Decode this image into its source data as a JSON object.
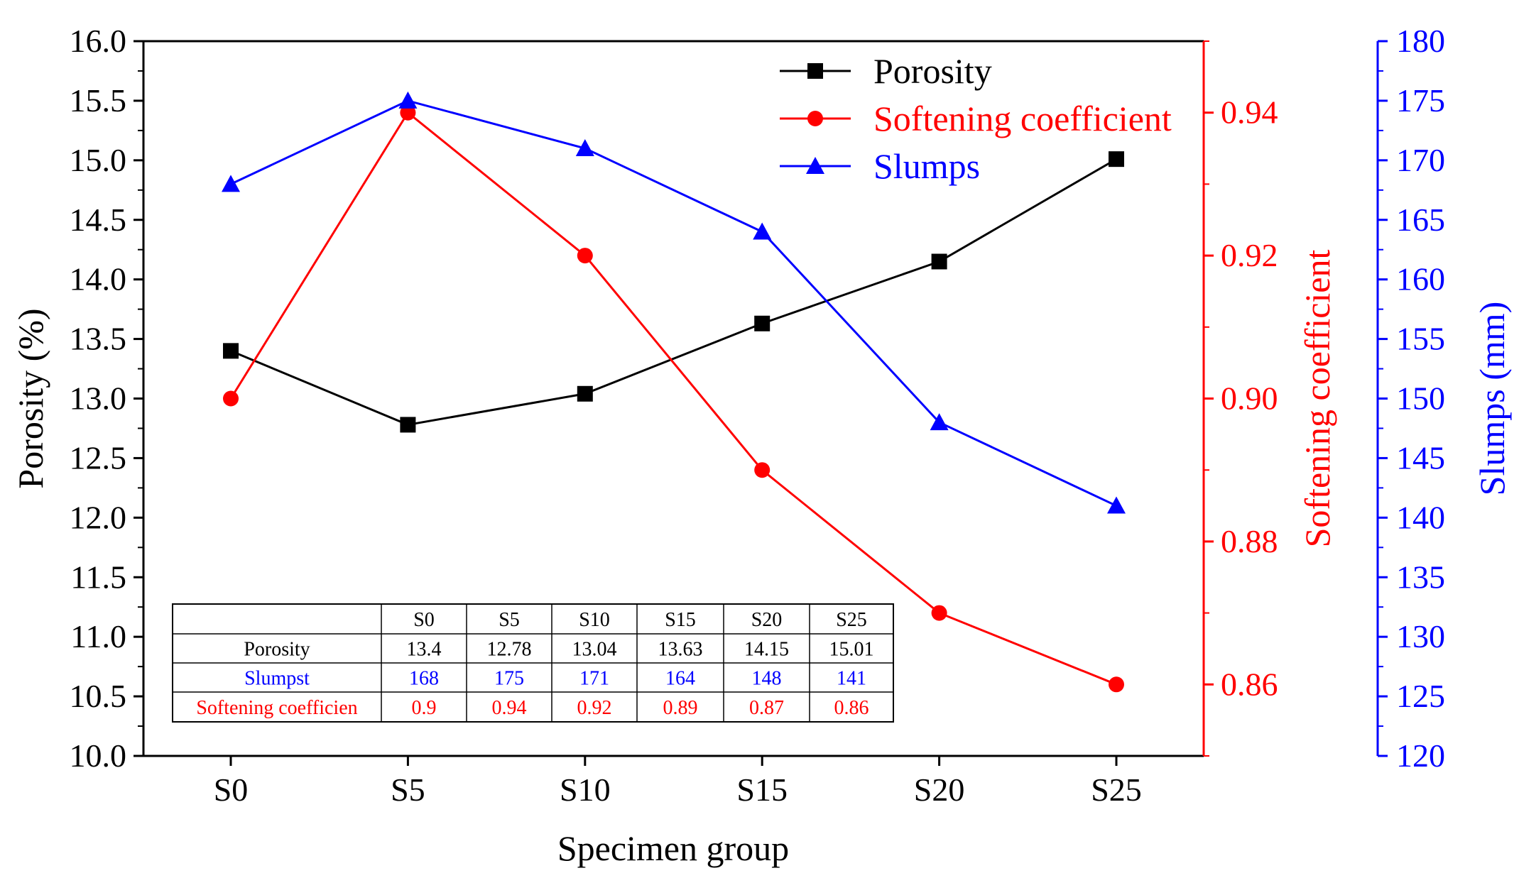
{
  "chart_data": {
    "type": "line",
    "categories": [
      "S0",
      "S5",
      "S10",
      "S15",
      "S20",
      "S25"
    ],
    "xlabel": "Specimen group",
    "axes": {
      "left": {
        "label": "Porosity (%)",
        "range": [
          10.0,
          16.0
        ],
        "step": 0.5,
        "decimals": 1,
        "color": "#000000"
      },
      "right1": {
        "label": "Softening coefficient",
        "range": [
          0.85,
          0.95
        ],
        "major": [
          0.86,
          0.88,
          0.9,
          0.92,
          0.94
        ],
        "decimals": 2,
        "color": "#ff0000"
      },
      "right2": {
        "label": "Slumps (mm)",
        "range": [
          120,
          180
        ],
        "step": 5,
        "decimals": 0,
        "color": "#0000ff"
      }
    },
    "series": [
      {
        "name": "Porosity",
        "axis": "left",
        "color": "#000000",
        "marker": "square",
        "values": [
          13.4,
          12.78,
          13.04,
          13.63,
          14.15,
          15.01
        ]
      },
      {
        "name": "Softening coefficient",
        "axis": "right1",
        "color": "#ff0000",
        "marker": "circle",
        "values": [
          0.9,
          0.94,
          0.92,
          0.89,
          0.87,
          0.86
        ]
      },
      {
        "name": "Slumps",
        "axis": "right2",
        "color": "#0000ff",
        "marker": "triangle",
        "values": [
          168,
          175,
          171,
          164,
          148,
          141
        ]
      }
    ],
    "legend": {
      "position": "top-right",
      "entries": [
        "Porosity",
        "Softening coefficient",
        "Slumps"
      ]
    },
    "table": {
      "header": [
        "",
        "S0",
        "S5",
        "S10",
        "S15",
        "S20",
        "S25"
      ],
      "rows": [
        {
          "label": "Porosity",
          "color": "#000000",
          "cells": [
            "13.4",
            "12.78",
            "13.04",
            "13.63",
            "14.15",
            "15.01"
          ]
        },
        {
          "label": "Slumpst",
          "color": "#0000ff",
          "cells": [
            "168",
            "175",
            "171",
            "164",
            "148",
            "141"
          ]
        },
        {
          "label": "Softening coefficien",
          "color": "#ff0000",
          "cells": [
            "0.9",
            "0.94",
            "0.92",
            "0.89",
            "0.87",
            "0.86"
          ]
        }
      ]
    }
  }
}
